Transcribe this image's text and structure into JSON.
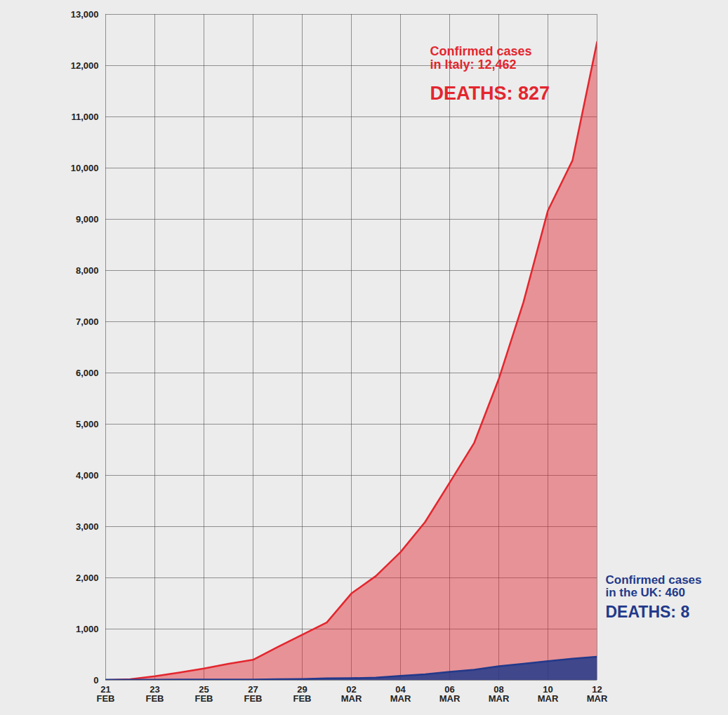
{
  "chart_data": {
    "type": "area",
    "categories": [
      "21 FEB",
      null,
      "23 FEB",
      null,
      "25 FEB",
      null,
      "27 FEB",
      null,
      "29 FEB",
      null,
      "02 MAR",
      null,
      "04 MAR",
      null,
      "06 MAR",
      null,
      "08 MAR",
      null,
      "10 MAR",
      null,
      "12 MAR"
    ],
    "series": [
      {
        "name": "Confirmed cases\nin Italy: 12,462",
        "color": "#e3262e",
        "values": [
          3,
          20,
          79,
          150,
          229,
          322,
          400,
          650,
          888,
          1128,
          1694,
          2036,
          2502,
          3089,
          3858,
          4636,
          5883,
          7375,
          9172,
          10149,
          12462
        ]
      },
      {
        "name": "Confirmed cases\nin the UK: 460",
        "color": "#22398a",
        "values": [
          9,
          9,
          9,
          13,
          13,
          13,
          15,
          20,
          23,
          36,
          40,
          51,
          85,
          115,
          163,
          206,
          273,
          321,
          373,
          420,
          460
        ]
      }
    ],
    "annotations": [
      "DEATHS: 827",
      "DEATHS: 8"
    ],
    "ylim": [
      0,
      13000
    ],
    "yticks": [
      0,
      {
        "value": 1000,
        "label": "1,000"
      },
      {
        "value": 2000,
        "label": "2,000"
      },
      {
        "value": 3000,
        "label": "3,000"
      },
      {
        "value": 4000,
        "label": "4,000"
      },
      {
        "value": 5000,
        "label": "5,000"
      },
      {
        "value": 6000,
        "label": "6,000"
      },
      {
        "value": 7000,
        "label": "7,000"
      },
      {
        "value": 8000,
        "label": "8,000"
      },
      {
        "value": 9000,
        "label": "9,000"
      },
      {
        "value": 10000,
        "label": "10,000"
      },
      {
        "value": 11000,
        "label": "11,000"
      },
      {
        "value": 12000,
        "label": "12,000"
      },
      {
        "value": 13000,
        "label": "13,000"
      }
    ],
    "grid": true
  }
}
